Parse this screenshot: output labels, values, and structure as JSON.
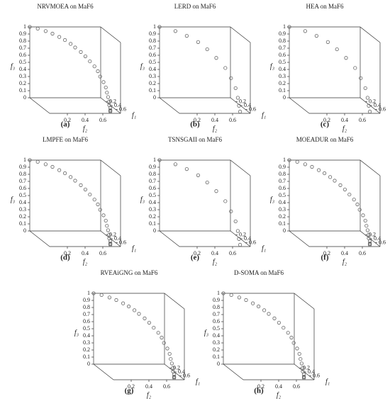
{
  "chart_data": [
    {
      "type": "scatter3d",
      "title": "NRVMOEA on MaF6",
      "label": "(a)",
      "xlabel": "f₁",
      "ylabel": "f₂",
      "zlabel": "f₃",
      "color": "#666666",
      "xlim": [
        0,
        0.8
      ],
      "ylim": [
        0,
        0.8
      ],
      "zlim": [
        0,
        1
      ],
      "xticks": [
        0.2,
        0.4,
        0.6
      ],
      "yticks": [
        0.2,
        0.4,
        0.6
      ],
      "zticks": [
        0,
        0.1,
        0.2,
        0.3,
        0.4,
        0.5,
        0.6,
        0.7,
        0.8,
        0.9,
        1
      ],
      "x": [
        0,
        0.07,
        0.14,
        0.2,
        0.26,
        0.31,
        0.36,
        0.4,
        0.45,
        0.49,
        0.53,
        0.57,
        0.6,
        0.62,
        0.65,
        0.67,
        0.68,
        0.69,
        0.7,
        0.7,
        0.71,
        0.71,
        0.71,
        0.71
      ],
      "y": [
        0,
        0.07,
        0.14,
        0.2,
        0.26,
        0.31,
        0.36,
        0.4,
        0.45,
        0.49,
        0.53,
        0.57,
        0.6,
        0.62,
        0.65,
        0.67,
        0.68,
        0.69,
        0.7,
        0.7,
        0.71,
        0.71,
        0.71,
        0.71
      ],
      "z": [
        1,
        0.995,
        0.98,
        0.96,
        0.93,
        0.9,
        0.86,
        0.82,
        0.77,
        0.72,
        0.66,
        0.6,
        0.54,
        0.47,
        0.4,
        0.33,
        0.26,
        0.2,
        0.14,
        0.09,
        0.05,
        0.02,
        0.01,
        0
      ]
    },
    {
      "type": "scatter3d",
      "title": "LERD on MaF6",
      "label": "(b)",
      "xlabel": "f₁",
      "ylabel": "f₂",
      "zlabel": "f₃",
      "color": "#666666",
      "xlim": [
        0,
        0.8
      ],
      "ylim": [
        0,
        0.8
      ],
      "zlim": [
        0,
        1
      ],
      "xticks": [
        0.2,
        0.4,
        0.6
      ],
      "yticks": [
        0.2,
        0.4,
        0.6
      ],
      "zticks": [
        0,
        0.1,
        0.2,
        0.3,
        0.4,
        0.5,
        0.6,
        0.7,
        0.8,
        0.9,
        1
      ],
      "x": [
        0,
        0.14,
        0.24,
        0.34,
        0.42,
        0.5,
        0.58,
        0.63,
        0.67,
        0.69,
        0.7,
        0.71
      ],
      "y": [
        0,
        0.14,
        0.24,
        0.34,
        0.42,
        0.5,
        0.58,
        0.63,
        0.67,
        0.69,
        0.7,
        0.71
      ],
      "z": [
        1,
        0.98,
        0.94,
        0.88,
        0.8,
        0.7,
        0.58,
        0.45,
        0.32,
        0.19,
        0.08,
        0
      ]
    },
    {
      "type": "scatter3d",
      "title": "HEA on MaF6",
      "label": "(c)",
      "xlabel": "f₁",
      "ylabel": "f₂",
      "zlabel": "f₃",
      "color": "#666666",
      "xlim": [
        0,
        0.8
      ],
      "ylim": [
        0,
        0.8
      ],
      "zlim": [
        0,
        1
      ],
      "xticks": [
        0.2,
        0.4,
        0.6
      ],
      "yticks": [
        0.2,
        0.4,
        0.6
      ],
      "zticks": [
        0,
        0.1,
        0.2,
        0.3,
        0.4,
        0.5,
        0.6,
        0.7,
        0.8,
        0.9,
        1
      ],
      "x": [
        0,
        0.14,
        0.24,
        0.34,
        0.42,
        0.5,
        0.58,
        0.63,
        0.67,
        0.69,
        0.7,
        0.71
      ],
      "y": [
        0,
        0.14,
        0.24,
        0.34,
        0.42,
        0.5,
        0.58,
        0.63,
        0.67,
        0.69,
        0.7,
        0.71
      ],
      "z": [
        1,
        0.98,
        0.94,
        0.88,
        0.8,
        0.7,
        0.58,
        0.45,
        0.32,
        0.19,
        0.08,
        0
      ]
    },
    {
      "type": "scatter3d",
      "title": "LMPFE on MaF6",
      "label": "(d)",
      "xlabel": "f₁",
      "ylabel": "f₂",
      "zlabel": "f₃",
      "color": "#666666",
      "xlim": [
        0,
        0.8
      ],
      "ylim": [
        0,
        0.8
      ],
      "zlim": [
        0,
        1
      ],
      "xticks": [
        0.2,
        0.4,
        0.6
      ],
      "yticks": [
        0.2,
        0.4,
        0.6
      ],
      "zticks": [
        0,
        0.1,
        0.2,
        0.3,
        0.4,
        0.5,
        0.6,
        0.7,
        0.8,
        0.9,
        1
      ],
      "x": [
        0,
        0.07,
        0.14,
        0.2,
        0.26,
        0.31,
        0.36,
        0.4,
        0.45,
        0.49,
        0.53,
        0.57,
        0.6,
        0.62,
        0.65,
        0.67,
        0.68,
        0.69,
        0.7,
        0.7,
        0.71,
        0.71,
        0.71,
        0.71
      ],
      "y": [
        0,
        0.07,
        0.14,
        0.2,
        0.26,
        0.31,
        0.36,
        0.4,
        0.45,
        0.49,
        0.53,
        0.57,
        0.6,
        0.62,
        0.65,
        0.67,
        0.68,
        0.69,
        0.7,
        0.7,
        0.71,
        0.71,
        0.71,
        0.71
      ],
      "z": [
        1,
        0.995,
        0.98,
        0.96,
        0.93,
        0.9,
        0.86,
        0.82,
        0.77,
        0.72,
        0.66,
        0.6,
        0.54,
        0.47,
        0.4,
        0.33,
        0.26,
        0.2,
        0.14,
        0.09,
        0.05,
        0.02,
        0.01,
        0
      ]
    },
    {
      "type": "scatter3d",
      "title": "TSNSGAII on MaF6",
      "label": "(e)",
      "xlabel": "f₁",
      "ylabel": "f₂",
      "zlabel": "f₃",
      "color": "#666666",
      "xlim": [
        0,
        0.8
      ],
      "ylim": [
        0,
        0.8
      ],
      "zlim": [
        0,
        1
      ],
      "xticks": [
        0.2,
        0.4,
        0.6
      ],
      "yticks": [
        0.2,
        0.4,
        0.6
      ],
      "zticks": [
        0,
        0.1,
        0.2,
        0.3,
        0.4,
        0.5,
        0.6,
        0.7,
        0.8,
        0.9,
        1
      ],
      "x": [
        0,
        0.14,
        0.24,
        0.34,
        0.42,
        0.5,
        0.58,
        0.63,
        0.67,
        0.69,
        0.7,
        0.71
      ],
      "y": [
        0,
        0.14,
        0.24,
        0.34,
        0.42,
        0.5,
        0.58,
        0.63,
        0.67,
        0.69,
        0.7,
        0.71
      ],
      "z": [
        1,
        0.98,
        0.94,
        0.88,
        0.8,
        0.7,
        0.58,
        0.45,
        0.32,
        0.19,
        0.08,
        0
      ]
    },
    {
      "type": "scatter3d",
      "title": "MOEADUR on MaF6",
      "label": "(f)",
      "xlabel": "f₁",
      "ylabel": "f₂",
      "zlabel": "f₃",
      "color": "#666666",
      "xlim": [
        0,
        0.8
      ],
      "ylim": [
        0,
        0.8
      ],
      "zlim": [
        0,
        1
      ],
      "xticks": [
        0.2,
        0.4,
        0.6
      ],
      "yticks": [
        0.2,
        0.4,
        0.6
      ],
      "zticks": [
        0,
        0.1,
        0.2,
        0.3,
        0.4,
        0.5,
        0.6,
        0.7,
        0.8,
        0.9,
        1
      ],
      "x": [
        0,
        0.07,
        0.14,
        0.2,
        0.26,
        0.31,
        0.36,
        0.4,
        0.45,
        0.49,
        0.53,
        0.57,
        0.6,
        0.62,
        0.65,
        0.67,
        0.68,
        0.69,
        0.7,
        0.7,
        0.71,
        0.71,
        0.71,
        0.71
      ],
      "y": [
        0,
        0.07,
        0.14,
        0.2,
        0.26,
        0.31,
        0.36,
        0.4,
        0.45,
        0.49,
        0.53,
        0.57,
        0.6,
        0.62,
        0.65,
        0.67,
        0.68,
        0.69,
        0.7,
        0.7,
        0.71,
        0.71,
        0.71,
        0.71
      ],
      "z": [
        1,
        0.995,
        0.98,
        0.96,
        0.93,
        0.9,
        0.86,
        0.82,
        0.77,
        0.72,
        0.66,
        0.6,
        0.54,
        0.47,
        0.4,
        0.33,
        0.26,
        0.2,
        0.14,
        0.09,
        0.05,
        0.02,
        0.01,
        0
      ]
    },
    {
      "type": "scatter3d",
      "title": "RVEAiGNG on MaF6",
      "label": "(g)",
      "xlabel": "f₁",
      "ylabel": "f₂",
      "zlabel": "f₃",
      "color": "#666666",
      "xlim": [
        0,
        0.8
      ],
      "ylim": [
        0,
        0.8
      ],
      "zlim": [
        0,
        1
      ],
      "xticks": [
        0.2,
        0.4,
        0.6
      ],
      "yticks": [
        0.2,
        0.4,
        0.6
      ],
      "zticks": [
        0,
        0.1,
        0.2,
        0.3,
        0.4,
        0.5,
        0.6,
        0.7,
        0.8,
        0.9,
        1
      ],
      "x": [
        0,
        0.07,
        0.14,
        0.2,
        0.26,
        0.31,
        0.36,
        0.4,
        0.45,
        0.49,
        0.53,
        0.57,
        0.6,
        0.62,
        0.65,
        0.67,
        0.68,
        0.69,
        0.7,
        0.7,
        0.71,
        0.71,
        0.71,
        0.71
      ],
      "y": [
        0,
        0.07,
        0.14,
        0.2,
        0.26,
        0.31,
        0.36,
        0.4,
        0.45,
        0.49,
        0.53,
        0.57,
        0.6,
        0.62,
        0.65,
        0.67,
        0.68,
        0.69,
        0.7,
        0.7,
        0.71,
        0.71,
        0.71,
        0.71
      ],
      "z": [
        1,
        0.995,
        0.98,
        0.96,
        0.93,
        0.9,
        0.86,
        0.82,
        0.77,
        0.72,
        0.66,
        0.6,
        0.54,
        0.47,
        0.4,
        0.33,
        0.26,
        0.2,
        0.14,
        0.09,
        0.05,
        0.02,
        0.01,
        0
      ]
    },
    {
      "type": "scatter3d",
      "title": "D-SOMA on MaF6",
      "label": "(h)",
      "xlabel": "f₁",
      "ylabel": "f₂",
      "zlabel": "f₃",
      "color": "#666666",
      "xlim": [
        0,
        0.8
      ],
      "ylim": [
        0,
        0.8
      ],
      "zlim": [
        0,
        1
      ],
      "xticks": [
        0.2,
        0.4,
        0.6
      ],
      "yticks": [
        0.2,
        0.4,
        0.6
      ],
      "zticks": [
        0,
        0.1,
        0.2,
        0.3,
        0.4,
        0.5,
        0.6,
        0.7,
        0.8,
        0.9,
        1
      ],
      "x": [
        0,
        0.07,
        0.14,
        0.2,
        0.26,
        0.31,
        0.36,
        0.4,
        0.45,
        0.49,
        0.53,
        0.57,
        0.6,
        0.62,
        0.65,
        0.67,
        0.68,
        0.69,
        0.7,
        0.7,
        0.71,
        0.71,
        0.71,
        0.71
      ],
      "y": [
        0,
        0.07,
        0.14,
        0.2,
        0.26,
        0.31,
        0.36,
        0.4,
        0.45,
        0.49,
        0.53,
        0.57,
        0.6,
        0.62,
        0.65,
        0.67,
        0.68,
        0.69,
        0.7,
        0.7,
        0.71,
        0.71,
        0.71,
        0.71
      ],
      "z": [
        1,
        0.995,
        0.98,
        0.96,
        0.93,
        0.9,
        0.86,
        0.82,
        0.77,
        0.72,
        0.66,
        0.6,
        0.54,
        0.47,
        0.4,
        0.33,
        0.26,
        0.2,
        0.14,
        0.09,
        0.05,
        0.02,
        0.01,
        0
      ]
    }
  ]
}
